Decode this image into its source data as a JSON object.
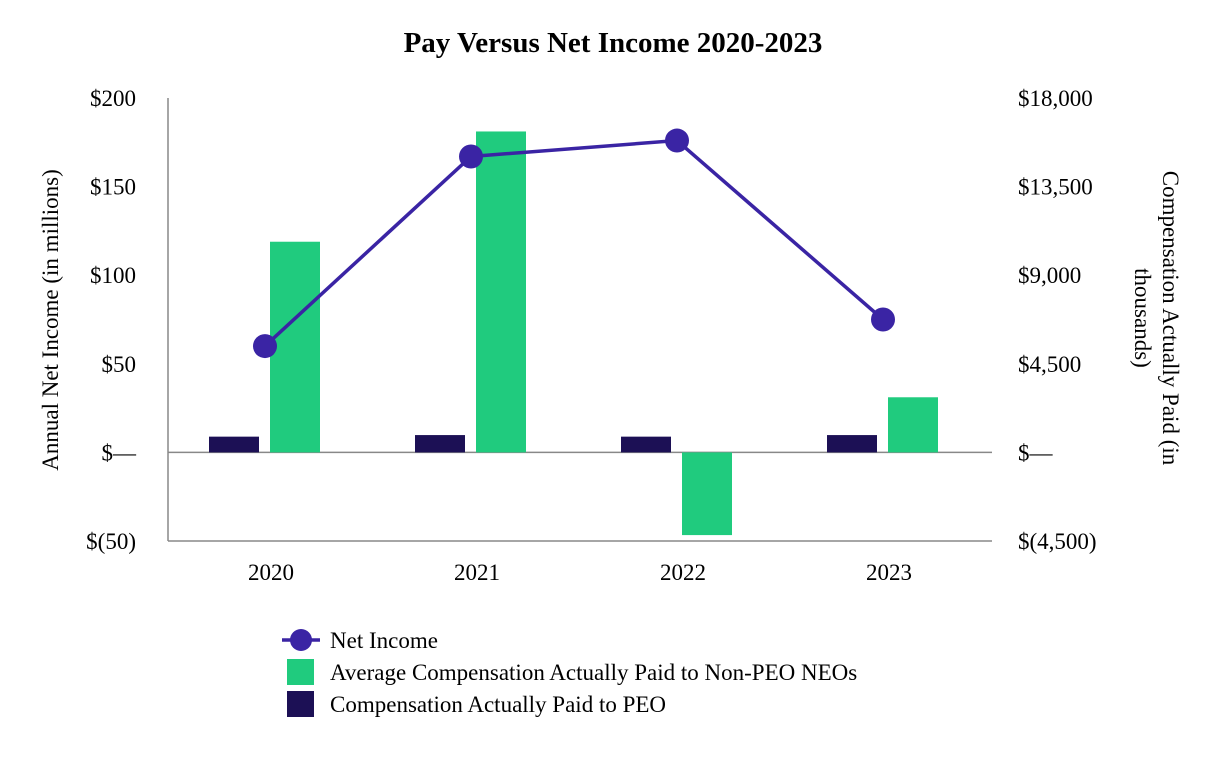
{
  "chart_data": {
    "type": "bar",
    "title": "Pay Versus Net Income 2020-2023",
    "categories": [
      "2020",
      "2021",
      "2022",
      "2023"
    ],
    "ylabel": "Annual Net Income (in millions)",
    "ylabel_right": "Compensation Actually Paid (in thousands)",
    "ylim": [
      -50,
      200
    ],
    "ylim_right": [
      -4500,
      18000
    ],
    "yticks": [
      "$200",
      "$150",
      "$100",
      "$50",
      "$—",
      "$(50)"
    ],
    "yticks_right": [
      "$18,000",
      "$13,500",
      "$9,000",
      "$4,500",
      "$—",
      "$(4,500)"
    ],
    "series": [
      {
        "name": "Compensation Actually Paid to PEO",
        "type": "bar",
        "axis": "right",
        "color": "#1c1055",
        "values": [
          800,
          880,
          800,
          880
        ]
      },
      {
        "name": "Average Compensation Actually Paid to Non-PEO NEOs",
        "type": "bar",
        "axis": "right",
        "color": "#20cb7e",
        "values": [
          10700,
          16300,
          -4200,
          2800
        ]
      },
      {
        "name": "Net Income",
        "type": "line",
        "axis": "left",
        "color": "#3a24a4",
        "values": [
          60,
          167,
          176,
          75
        ]
      }
    ],
    "legend_order": [
      "Net Income",
      "Average Compensation Actually Paid to Non-PEO NEOs",
      "Compensation Actually Paid to PEO"
    ],
    "legend_position": "bottom",
    "grid": false
  }
}
